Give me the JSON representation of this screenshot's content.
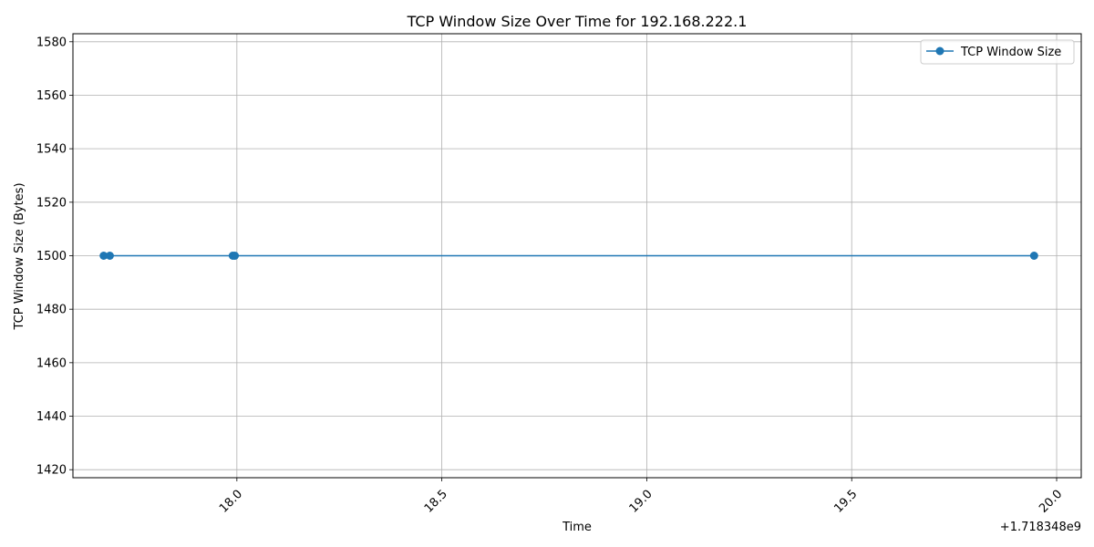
{
  "chart_data": {
    "type": "line",
    "title": "TCP Window Size Over Time for 192.168.222.1",
    "xlabel": "Time",
    "ylabel": "TCP Window Size (Bytes)",
    "x_offset_label": "+1.718348e9",
    "xlim": [
      17.6,
      20.06
    ],
    "ylim": [
      1417,
      1583
    ],
    "x_ticks": [
      18.0,
      18.5,
      19.0,
      19.5,
      20.0
    ],
    "x_tick_labels": [
      "18.0",
      "18.5",
      "19.0",
      "19.5",
      "20.0"
    ],
    "y_ticks": [
      1420,
      1440,
      1460,
      1480,
      1500,
      1520,
      1540,
      1560,
      1580
    ],
    "y_tick_labels": [
      "1420",
      "1440",
      "1460",
      "1480",
      "1500",
      "1520",
      "1540",
      "1560",
      "1580"
    ],
    "grid": true,
    "legend_position": "top-right",
    "series": [
      {
        "name": "TCP Window Size",
        "color": "#1f77b4",
        "marker": "circle",
        "x": [
          17.675,
          17.69,
          17.99,
          17.995,
          19.945
        ],
        "y": [
          1500,
          1500,
          1500,
          1500,
          1500
        ]
      }
    ]
  }
}
